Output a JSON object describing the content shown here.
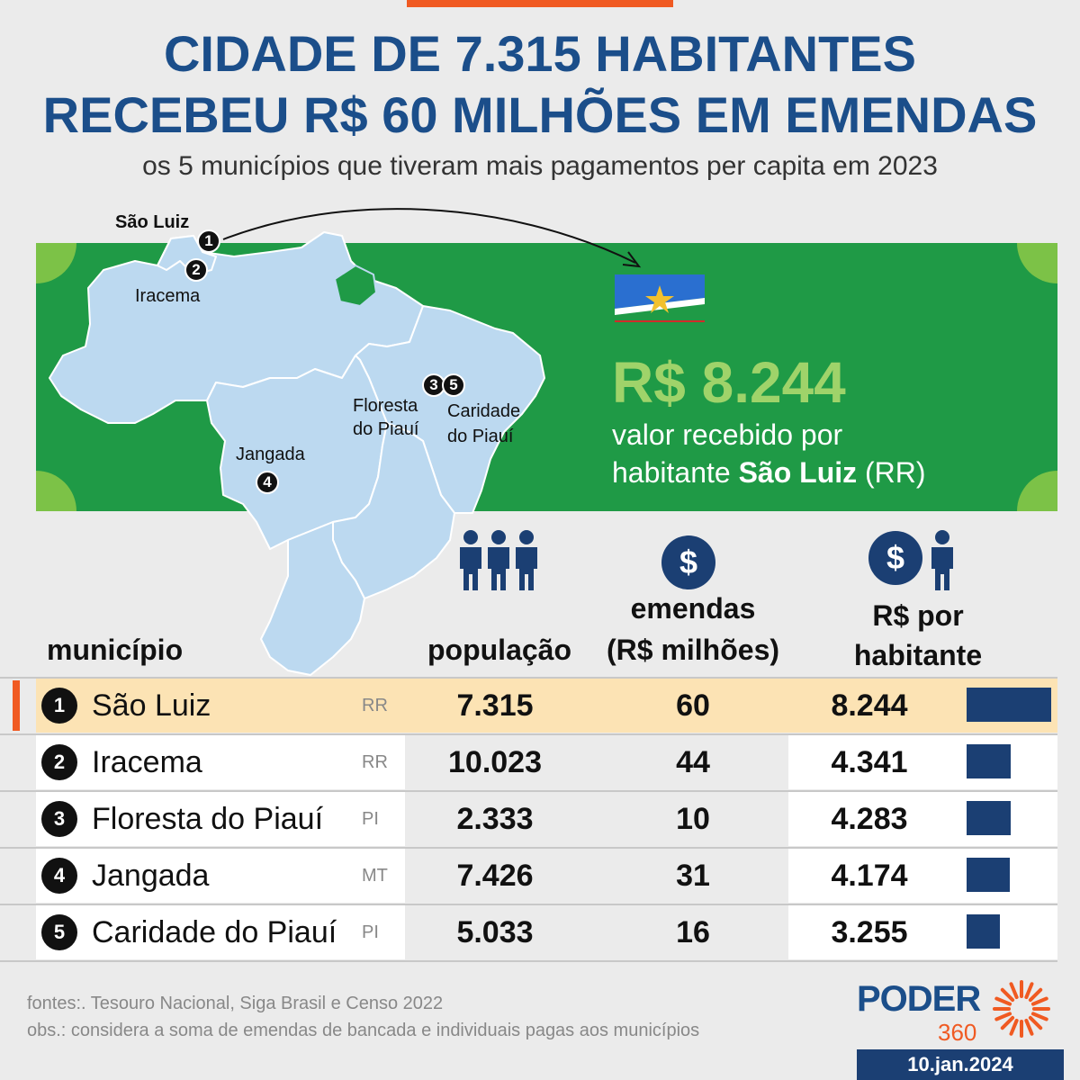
{
  "header": {
    "title_line1": "CIDADE DE 7.315 HABITANTES",
    "title_line2": "RECEBEU R$ 60 MILHÕES EM EMENDAS",
    "subtitle": "os 5 municípios que tiveram mais pagamentos per capita em 2023"
  },
  "map": {
    "labels": {
      "sao_luiz": "São Luiz",
      "iracema": "Iracema",
      "floresta_l1": "Floresta",
      "floresta_l2": "do Piauí",
      "caridade_l1": "Caridade",
      "caridade_l2": "do Piauí",
      "jangada": "Jangada"
    },
    "pins": [
      "1",
      "2",
      "3",
      "5",
      "4"
    ]
  },
  "highlight": {
    "value": "R$ 8.244",
    "caption_line1": "valor recebido por",
    "caption_prefix": "habitante ",
    "caption_city": "São Luiz",
    "caption_suffix": " (RR)"
  },
  "columns": {
    "municipio": "município",
    "populacao": "população",
    "emendas_l1": "emendas",
    "emendas_l2": "(R$ milhões)",
    "per_l1": "R$ por",
    "per_l2": "habitante"
  },
  "rows": [
    {
      "rank": "1",
      "name": "São Luiz",
      "uf": "RR",
      "pop": "7.315",
      "emendas": "60",
      "per": "8.244"
    },
    {
      "rank": "2",
      "name": "Iracema",
      "uf": "RR",
      "pop": "10.023",
      "emendas": "44",
      "per": "4.341"
    },
    {
      "rank": "3",
      "name": "Floresta do Piauí",
      "uf": "PI",
      "pop": "2.333",
      "emendas": "10",
      "per": "4.283"
    },
    {
      "rank": "4",
      "name": "Jangada",
      "uf": "MT",
      "pop": "7.426",
      "emendas": "31",
      "per": "4.174"
    },
    {
      "rank": "5",
      "name": "Caridade do Piauí",
      "uf": "PI",
      "pop": "5.033",
      "emendas": "16",
      "per": "3.255"
    }
  ],
  "chart_data": {
    "type": "table",
    "categories": [
      "São Luiz",
      "Iracema",
      "Floresta do Piauí",
      "Jangada",
      "Caridade do Piauí"
    ],
    "series": [
      {
        "name": "população",
        "values": [
          7315,
          10023,
          2333,
          7426,
          5033
        ]
      },
      {
        "name": "emendas (R$ milhões)",
        "values": [
          60,
          44,
          10,
          31,
          16
        ]
      },
      {
        "name": "R$ por habitante",
        "values": [
          8244,
          4341,
          4283,
          4174,
          3255
        ]
      }
    ]
  },
  "footer": {
    "sources": "fontes:. Tesouro Nacional, Siga Brasil e Censo 2022",
    "note": "obs.: considera a soma de emendas de bancada e individuais pagas aos municípios",
    "logo": "PODER",
    "logo_sub": "360",
    "date": "10.jan.2024"
  },
  "colors": {
    "accent": "#f05a22",
    "navy": "#1b4e8a",
    "green": "#1f9a46",
    "bar": "#1b3f73",
    "highlight_row": "#fce3b4"
  }
}
